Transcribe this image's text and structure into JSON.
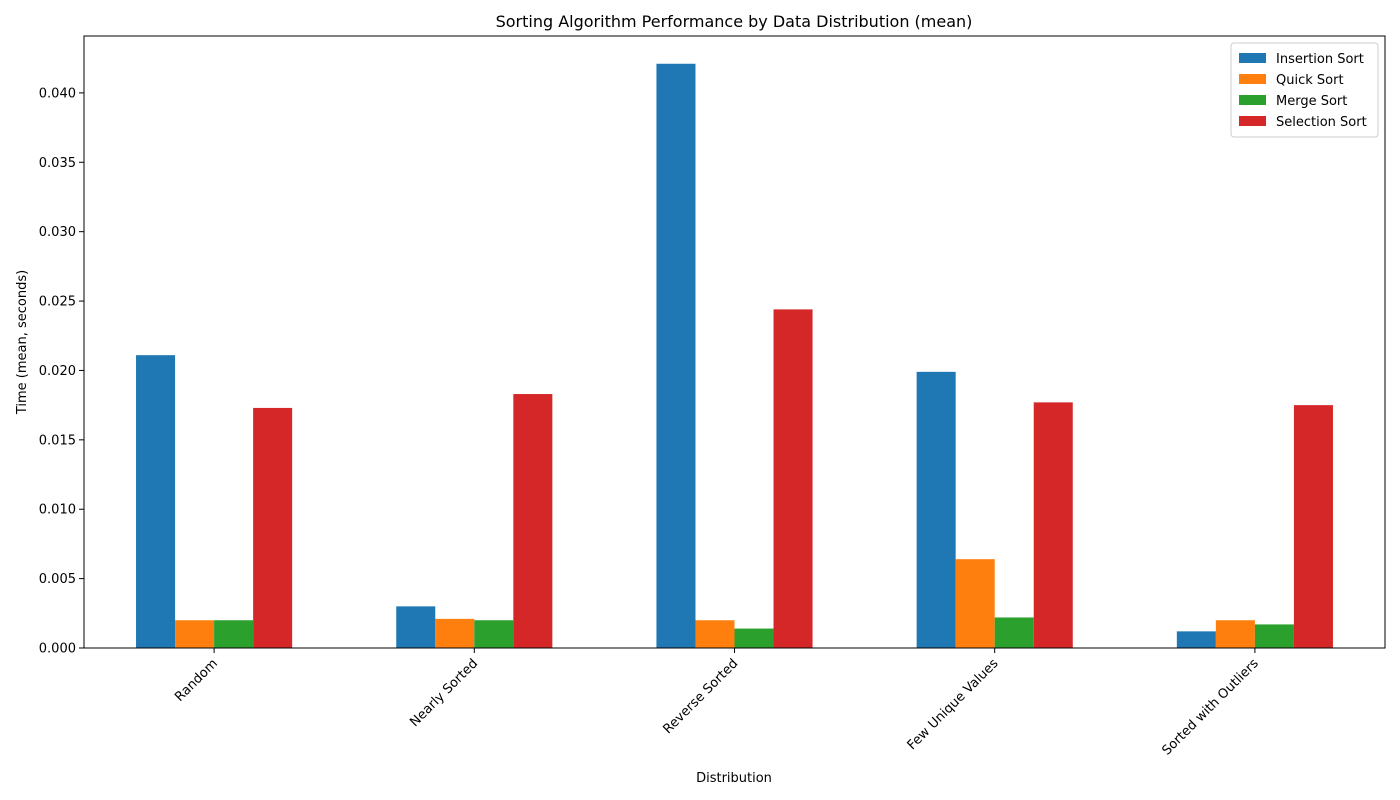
{
  "chart_data": {
    "type": "bar",
    "title": "Sorting Algorithm Performance by Data Distribution (mean)",
    "xlabel": "Distribution",
    "ylabel": "Time (mean, seconds)",
    "ylim": [
      0,
      0.0441
    ],
    "yticks": [
      "0.000",
      "0.005",
      "0.010",
      "0.015",
      "0.020",
      "0.025",
      "0.030",
      "0.035",
      "0.040"
    ],
    "grid": false,
    "legend_position": "top-right",
    "categories": [
      "Random",
      "Nearly Sorted",
      "Reverse Sorted",
      "Few Unique Values",
      "Sorted with Outliers"
    ],
    "series": [
      {
        "name": "Insertion Sort",
        "color": "#1f77b4",
        "values": [
          0.0211,
          0.003,
          0.0421,
          0.0199,
          0.0012
        ]
      },
      {
        "name": "Quick Sort",
        "color": "#ff7f0e",
        "values": [
          0.002,
          0.0021,
          0.002,
          0.0064,
          0.002
        ]
      },
      {
        "name": "Merge Sort",
        "color": "#2ca02c",
        "values": [
          0.002,
          0.002,
          0.0014,
          0.0022,
          0.0017
        ]
      },
      {
        "name": "Selection Sort",
        "color": "#d62728",
        "values": [
          0.0173,
          0.0183,
          0.0244,
          0.0177,
          0.0175
        ]
      }
    ]
  }
}
